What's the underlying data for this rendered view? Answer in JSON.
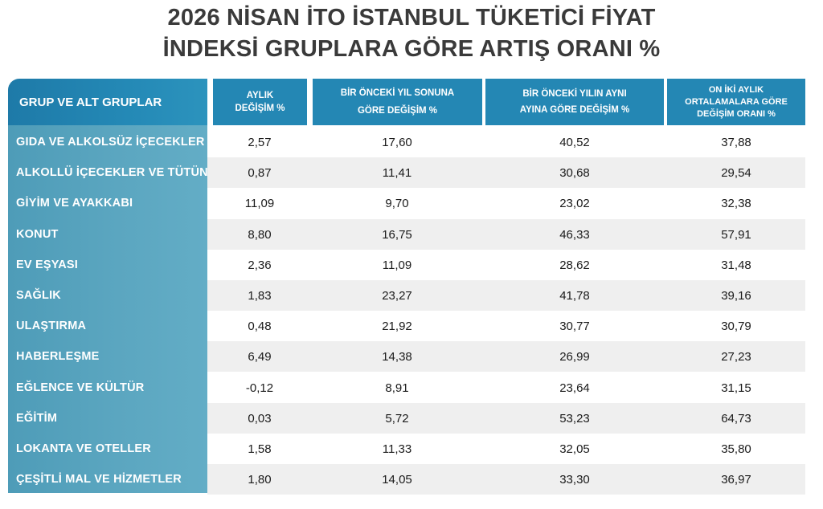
{
  "title": {
    "line1": "2026 NİSAN İTO İSTANBUL TÜKETİCİ FİYAT",
    "line2": "İNDEKSİ GRUPLARA GÖRE ARTIŞ ORANI %"
  },
  "headers": {
    "group": "GRUP VE ALT GRUPLAR",
    "col1_l1": "AYLIK",
    "col1_l2": "DEĞİŞİM %",
    "col2_l1": "BİR ÖNCEKİ YIL SONUNA",
    "col2_l2": "GÖRE DEĞİŞİM %",
    "col3_l1": "BİR ÖNCEKİ YILIN AYNI",
    "col3_l2": "AYINA GÖRE DEĞİŞİM %",
    "col4_l1": "ON İKİ  AYLIK",
    "col4_l2": "ORTALAMALARA GÖRE",
    "col4_l3": "DEĞİŞİM ORANI %"
  },
  "colors": {
    "header_blue": "#2487b4",
    "group_column_blue": "#5ba6c0",
    "row_stripe": "#efefef"
  },
  "chart_data": {
    "type": "table",
    "title": "2026 NİSAN İTO İSTANBUL TÜKETİCİ FİYAT İNDEKSİ GRUPLARA GÖRE ARTIŞ ORANI %",
    "columns": [
      "GRUP VE ALT GRUPLAR",
      "AYLIK DEĞİŞİM %",
      "BİR ÖNCEKİ YIL SONUNA GÖRE DEĞİŞİM %",
      "BİR ÖNCEKİ YILIN AYNI AYINA GÖRE DEĞİŞİM %",
      "ON İKİ  AYLIK ORTALAMALARA GÖRE DEĞİŞİM ORANI %"
    ],
    "rows": [
      {
        "group": "GIDA VE ALKOLSÜZ İÇECEKLER",
        "monthly": "2,57",
        "ytd": "17,60",
        "yoy": "40,52",
        "avg12": "37,88"
      },
      {
        "group": "ALKOLLÜ İÇECEKLER VE TÜTÜN",
        "monthly": "0,87",
        "ytd": "11,41",
        "yoy": "30,68",
        "avg12": "29,54"
      },
      {
        "group": "GİYİM VE AYAKKABI",
        "monthly": "11,09",
        "ytd": "9,70",
        "yoy": "23,02",
        "avg12": "32,38"
      },
      {
        "group": "KONUT",
        "monthly": "8,80",
        "ytd": "16,75",
        "yoy": "46,33",
        "avg12": "57,91"
      },
      {
        "group": "EV EŞYASI",
        "monthly": "2,36",
        "ytd": "11,09",
        "yoy": "28,62",
        "avg12": "31,48"
      },
      {
        "group": "SAĞLIK",
        "monthly": "1,83",
        "ytd": "23,27",
        "yoy": "41,78",
        "avg12": "39,16"
      },
      {
        "group": "ULAŞTIRMA",
        "monthly": "0,48",
        "ytd": "21,92",
        "yoy": "30,77",
        "avg12": "30,79"
      },
      {
        "group": "HABERLEŞME",
        "monthly": "6,49",
        "ytd": "14,38",
        "yoy": "26,99",
        "avg12": "27,23"
      },
      {
        "group": "EĞLENCE VE KÜLTÜR",
        "monthly": "-0,12",
        "ytd": "8,91",
        "yoy": "23,64",
        "avg12": "31,15"
      },
      {
        "group": "EĞİTİM",
        "monthly": "0,03",
        "ytd": "5,72",
        "yoy": "53,23",
        "avg12": "64,73"
      },
      {
        "group": "LOKANTA VE OTELLER",
        "monthly": "1,58",
        "ytd": "11,33",
        "yoy": "32,05",
        "avg12": "35,80"
      },
      {
        "group": "ÇEŞİTLİ MAL VE HİZMETLER",
        "monthly": "1,80",
        "ytd": "14,05",
        "yoy": "33,30",
        "avg12": "36,97"
      }
    ]
  }
}
